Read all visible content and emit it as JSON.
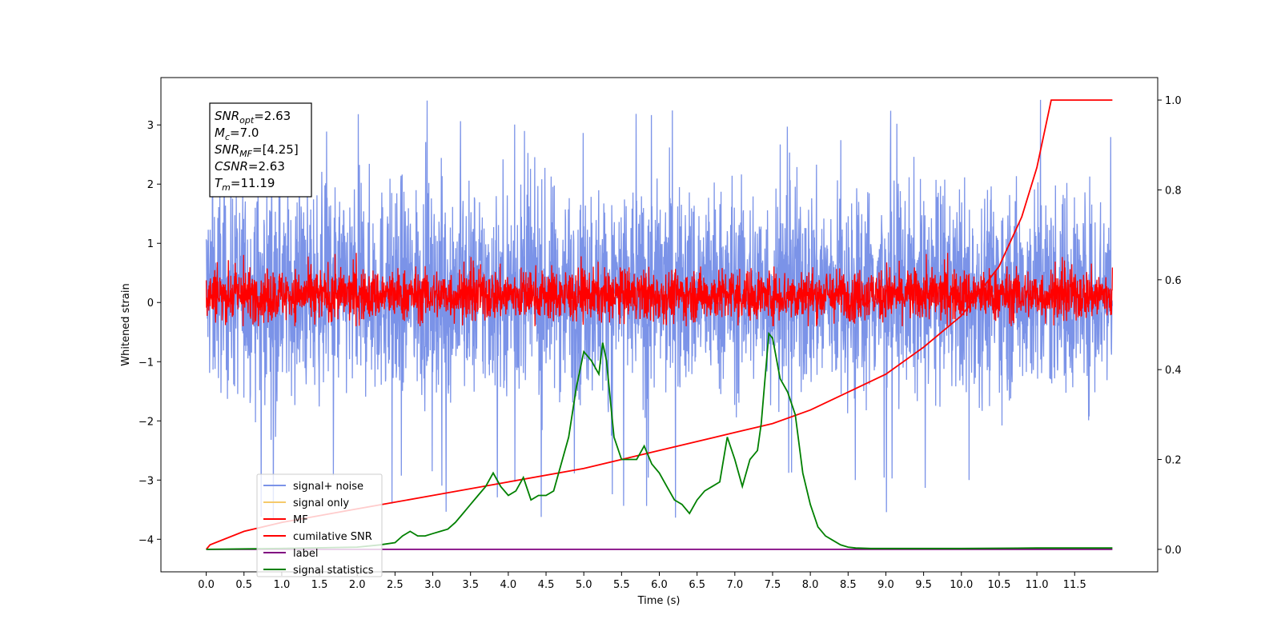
{
  "chart_data": {
    "type": "line",
    "xlabel": "Time (s)",
    "ylabel": "Whitened strain",
    "x_ticks": [
      "0.0",
      "0.5",
      "1.0",
      "1.5",
      "2.0",
      "2.5",
      "3.0",
      "3.5",
      "4.0",
      "4.5",
      "5.0",
      "5.5",
      "6.0",
      "6.5",
      "7.0",
      "7.5",
      "8.0",
      "8.5",
      "9.0",
      "9.5",
      "10.0",
      "10.5",
      "11.0",
      "11.5"
    ],
    "y_left_ticks": [
      "3",
      "2",
      "1",
      "0",
      "−1",
      "−2",
      "−3",
      "−4"
    ],
    "y_right_ticks": [
      "1.0",
      "0.8",
      "0.6",
      "0.4",
      "0.2",
      "0.0"
    ],
    "xlim": [
      -0.6,
      12.6
    ],
    "ylim_left": [
      -4.55,
      3.8
    ],
    "ylim_right": [
      -0.05,
      1.05
    ],
    "grid": false,
    "legend_position": "lower-left",
    "legend": [
      {
        "name": "signal+ noise",
        "color": "#7b93e8"
      },
      {
        "name": "signal only",
        "color": "#f5c96b"
      },
      {
        "name": "MF",
        "color": "#ff0000"
      },
      {
        "name": "cumilative SNR",
        "color": "#ff0000"
      },
      {
        "name": "label",
        "color": "#800080"
      },
      {
        "name": "signal statistics",
        "color": "#008000"
      }
    ],
    "info_box": {
      "snr_opt": "=2.63",
      "mc": "=7.0",
      "snr_mf": "=[4.25]",
      "csnr": "=2.63",
      "tm": "=11.19"
    },
    "series": [
      {
        "name": "signal+ noise",
        "axis": "left",
        "kind": "noise",
        "x_range": [
          0.0,
          12.0
        ],
        "envelope_typical": [
          -1.7,
          2.1
        ],
        "extremes": {
          "max": 3.48,
          "min": -3.7
        },
        "color": "#7b93e8"
      },
      {
        "name": "MF",
        "axis": "left",
        "kind": "noise",
        "x_range": [
          0.0,
          12.0
        ],
        "envelope_typical": [
          -0.35,
          0.6
        ],
        "extremes": {
          "max": 0.9,
          "min": -0.4
        },
        "color": "#ff0000"
      },
      {
        "name": "cumilative SNR",
        "axis": "right",
        "color": "#ff0000",
        "x": [
          0.0,
          0.05,
          0.5,
          1.0,
          2.0,
          3.0,
          4.0,
          5.0,
          6.0,
          7.0,
          7.5,
          8.0,
          8.5,
          9.0,
          9.5,
          10.0,
          10.5,
          10.8,
          11.0,
          11.19,
          12.0
        ],
        "values": [
          0.0,
          0.01,
          0.04,
          0.06,
          0.09,
          0.12,
          0.15,
          0.18,
          0.22,
          0.26,
          0.28,
          0.31,
          0.35,
          0.39,
          0.45,
          0.52,
          0.63,
          0.74,
          0.85,
          1.0,
          1.0
        ]
      },
      {
        "name": "label",
        "axis": "right",
        "color": "#800080",
        "x": [
          0.0,
          12.0
        ],
        "values": [
          0.0,
          0.0
        ]
      },
      {
        "name": "signal statistics",
        "axis": "right",
        "color": "#008000",
        "x": [
          0.0,
          1.0,
          2.0,
          2.3,
          2.5,
          2.6,
          2.7,
          2.8,
          2.9,
          3.0,
          3.1,
          3.2,
          3.3,
          3.4,
          3.5,
          3.6,
          3.7,
          3.8,
          3.9,
          4.0,
          4.1,
          4.2,
          4.3,
          4.4,
          4.5,
          4.6,
          4.7,
          4.8,
          4.9,
          5.0,
          5.1,
          5.2,
          5.25,
          5.3,
          5.4,
          5.5,
          5.6,
          5.7,
          5.8,
          5.9,
          6.0,
          6.1,
          6.2,
          6.3,
          6.4,
          6.5,
          6.6,
          6.7,
          6.8,
          6.9,
          7.0,
          7.1,
          7.2,
          7.3,
          7.35,
          7.45,
          7.5,
          7.6,
          7.7,
          7.8,
          7.9,
          8.0,
          8.1,
          8.2,
          8.3,
          8.4,
          8.5,
          8.6,
          8.8,
          9.0,
          10.0,
          11.0,
          12.0
        ],
        "values": [
          0.0,
          0.002,
          0.005,
          0.01,
          0.015,
          0.03,
          0.04,
          0.03,
          0.03,
          0.035,
          0.04,
          0.045,
          0.06,
          0.08,
          0.1,
          0.12,
          0.14,
          0.17,
          0.14,
          0.12,
          0.13,
          0.16,
          0.11,
          0.12,
          0.12,
          0.13,
          0.19,
          0.25,
          0.36,
          0.44,
          0.42,
          0.39,
          0.46,
          0.42,
          0.25,
          0.2,
          0.2,
          0.2,
          0.23,
          0.19,
          0.17,
          0.14,
          0.11,
          0.1,
          0.08,
          0.11,
          0.13,
          0.14,
          0.15,
          0.25,
          0.2,
          0.14,
          0.2,
          0.22,
          0.28,
          0.48,
          0.47,
          0.38,
          0.35,
          0.3,
          0.17,
          0.1,
          0.05,
          0.03,
          0.02,
          0.01,
          0.005,
          0.003,
          0.002,
          0.002,
          0.002,
          0.003,
          0.003
        ]
      }
    ]
  }
}
